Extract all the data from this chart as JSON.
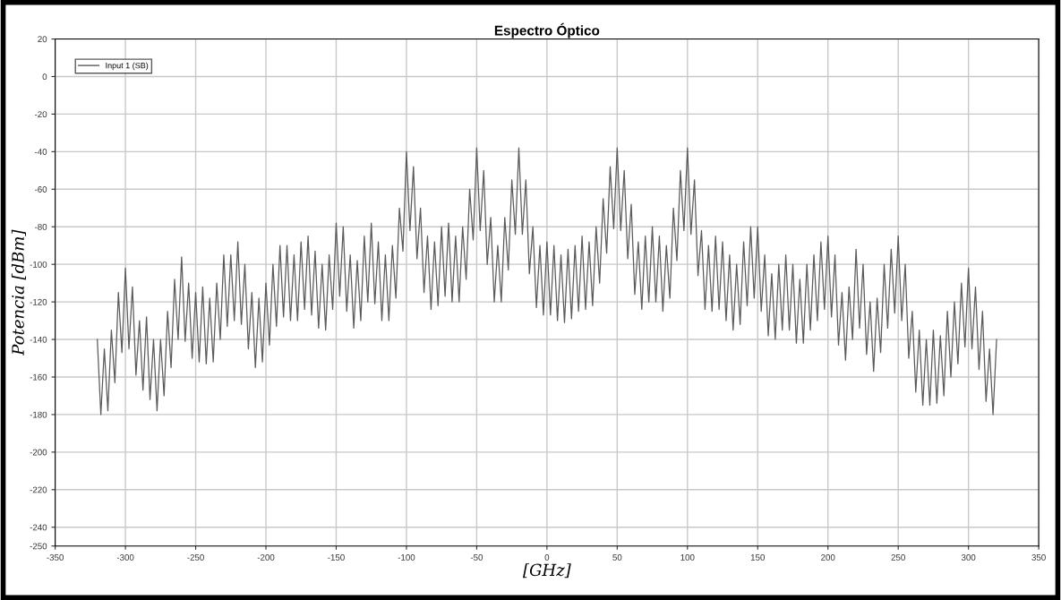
{
  "chart_data": {
    "type": "line",
    "title": "Espectro Óptico",
    "xlabel": "[GHz]",
    "ylabel": "Potencia [dBm]",
    "xlim": [
      -350,
      350
    ],
    "xticks": [
      -350,
      -300,
      -250,
      -200,
      -150,
      -100,
      -50,
      0,
      50,
      100,
      150,
      200,
      250,
      300,
      350
    ],
    "ylim": [
      -250,
      20
    ],
    "yticks": [
      20,
      0,
      -20,
      -40,
      -60,
      -80,
      -100,
      -120,
      -140,
      -160,
      -180,
      -200,
      -220,
      -240,
      -250
    ],
    "grid": true,
    "legend": "top left",
    "x": [
      -320,
      -317.5,
      -315,
      -312.5,
      -310,
      -307.5,
      -305,
      -302.5,
      -300,
      -297.5,
      -295,
      -292.5,
      -290,
      -287.5,
      -285,
      -282.5,
      -280,
      -277.5,
      -275,
      -272.5,
      -270,
      -267.5,
      -265,
      -262.5,
      -260,
      -257.5,
      -255,
      -252.5,
      -250,
      -247.5,
      -245,
      -242.5,
      -240,
      -237.5,
      -235,
      -232.5,
      -230,
      -227.5,
      -225,
      -222.5,
      -220,
      -217.5,
      -215,
      -212.5,
      -210,
      -207.5,
      -205,
      -202.5,
      -200,
      -197.5,
      -195,
      -192.5,
      -190,
      -187.5,
      -185,
      -182.5,
      -180,
      -177.5,
      -175,
      -172.5,
      -170,
      -167.5,
      -165,
      -162.5,
      -160,
      -157.5,
      -155,
      -152.5,
      -150,
      -147.5,
      -145,
      -142.5,
      -140,
      -137.5,
      -135,
      -132.5,
      -130,
      -127.5,
      -125,
      -122.5,
      -120,
      -117.5,
      -115,
      -112.5,
      -110,
      -107.5,
      -105,
      -102.5,
      -100,
      -97.5,
      -95,
      -92.5,
      -90,
      -87.5,
      -85,
      -82.5,
      -80,
      -77.5,
      -75,
      -72.5,
      -70,
      -67.5,
      -65,
      -62.5,
      -60,
      -57.5,
      -55,
      -52.5,
      -50,
      -47.5,
      -45,
      -42.5,
      -40,
      -37.5,
      -35,
      -32.5,
      -30,
      -27.5,
      -25,
      -22.5,
      -20,
      -17.5,
      -15,
      -12.5,
      -10,
      -7.5,
      -5,
      -2.5,
      0,
      2.5,
      5,
      7.5,
      10,
      12.5,
      15,
      17.5,
      20,
      22.5,
      25,
      27.5,
      30,
      32.5,
      35,
      37.5,
      40,
      42.5,
      45,
      47.5,
      50,
      52.5,
      55,
      57.5,
      60,
      62.5,
      65,
      67.5,
      70,
      72.5,
      75,
      77.5,
      80,
      82.5,
      85,
      87.5,
      90,
      92.5,
      95,
      97.5,
      100,
      102.5,
      105,
      107.5,
      110,
      112.5,
      115,
      117.5,
      120,
      122.5,
      125,
      127.5,
      130,
      132.5,
      135,
      137.5,
      140,
      142.5,
      145,
      147.5,
      150,
      152.5,
      155,
      157.5,
      160,
      162.5,
      165,
      167.5,
      170,
      172.5,
      175,
      177.5,
      180,
      182.5,
      185,
      187.5,
      190,
      192.5,
      195,
      197.5,
      200,
      202.5,
      205,
      207.5,
      210,
      212.5,
      215,
      217.5,
      220,
      222.5,
      225,
      227.5,
      230,
      232.5,
      235,
      237.5,
      240,
      242.5,
      245,
      247.5,
      250,
      252.5,
      255,
      257.5,
      260,
      262.5,
      265,
      267.5,
      270,
      272.5,
      275,
      277.5,
      280,
      282.5,
      285,
      287.5,
      290,
      292.5,
      295,
      297.5,
      300,
      302.5,
      305,
      307.5,
      310,
      312.5,
      315,
      317.5,
      320
    ],
    "series": [
      {
        "name": "Input 1 (SB)",
        "color": "#5a5a5a",
        "values": [
          -140,
          -180,
          -145,
          -178,
          -135,
          -163,
          -115,
          -147,
          -102,
          -145,
          -112,
          -159,
          -130,
          -167,
          -128,
          -172,
          -140,
          -178,
          -140,
          -170,
          -125,
          -155,
          -108,
          -140,
          -96,
          -141,
          -110,
          -150,
          -115,
          -152,
          -112,
          -153,
          -118,
          -152,
          -110,
          -140,
          -95,
          -133,
          -95,
          -130,
          -88,
          -132,
          -100,
          -145,
          -115,
          -155,
          -118,
          -152,
          -110,
          -143,
          -100,
          -133,
          -90,
          -128,
          -90,
          -130,
          -95,
          -130,
          -88,
          -124,
          -85,
          -127,
          -93,
          -134,
          -100,
          -135,
          -95,
          -124,
          -78,
          -117,
          -80,
          -125,
          -95,
          -134,
          -98,
          -130,
          -85,
          -120,
          -78,
          -121,
          -88,
          -130,
          -95,
          -130,
          -90,
          -118,
          -70,
          -93,
          -40,
          -82,
          -48,
          -97,
          -70,
          -115,
          -85,
          -124,
          -88,
          -122,
          -80,
          -117,
          -78,
          -120,
          -85,
          -120,
          -80,
          -108,
          -60,
          -87,
          -38,
          -82,
          -50,
          -100,
          -75,
          -120,
          -90,
          -120,
          -75,
          -103,
          -55,
          -84,
          -38,
          -84,
          -55,
          -105,
          -80,
          -123,
          -90,
          -127,
          -88,
          -127,
          -90,
          -130,
          -95,
          -131,
          -92,
          -129,
          -90,
          -125,
          -85,
          -124,
          -88,
          -122,
          -80,
          -110,
          -65,
          -94,
          -48,
          -81,
          -38,
          -82,
          -50,
          -97,
          -68,
          -116,
          -88,
          -124,
          -85,
          -120,
          -80,
          -120,
          -85,
          -125,
          -90,
          -118,
          -70,
          -98,
          -50,
          -82,
          -38,
          -84,
          -55,
          -106,
          -82,
          -124,
          -90,
          -125,
          -85,
          -124,
          -88,
          -130,
          -95,
          -135,
          -100,
          -132,
          -88,
          -122,
          -80,
          -118,
          -80,
          -125,
          -95,
          -138,
          -105,
          -140,
          -100,
          -135,
          -95,
          -135,
          -100,
          -142,
          -108,
          -142,
          -100,
          -135,
          -95,
          -130,
          -88,
          -124,
          -85,
          -128,
          -95,
          -143,
          -115,
          -151,
          -112,
          -140,
          -92,
          -134,
          -100,
          -148,
          -120,
          -157,
          -118,
          -147,
          -100,
          -134,
          -92,
          -126,
          -85,
          -130,
          -100,
          -150,
          -125,
          -168,
          -135,
          -175,
          -140,
          -175,
          -135,
          -174,
          -138,
          -170,
          -125,
          -160,
          -120,
          -153,
          -110,
          -144,
          -102,
          -145,
          -112,
          -156,
          -125,
          -173,
          -145,
          -180,
          -140
        ]
      }
    ]
  }
}
